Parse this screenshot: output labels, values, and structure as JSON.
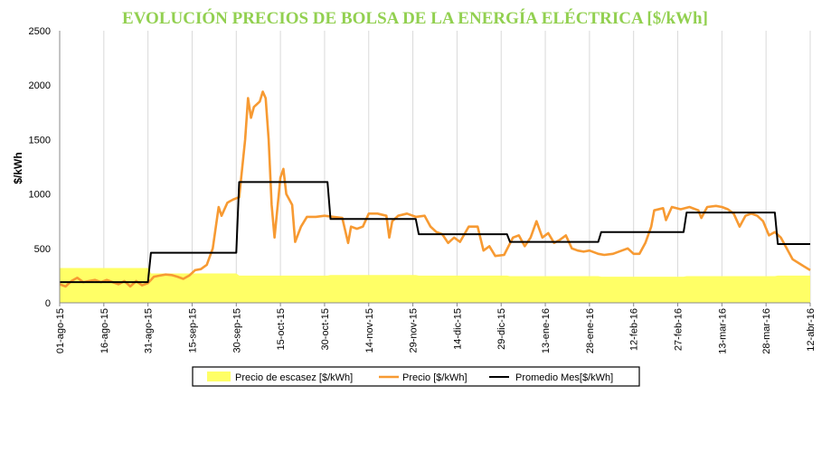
{
  "chart_data": {
    "type": "line",
    "title": "EVOLUCIÓN PRECIOS DE BOLSA DE LA ENERGÍA ELÉCTRICA [$/kWh]",
    "xlabel": "",
    "ylabel": "$/kWh",
    "ylim": [
      0,
      2500
    ],
    "yticks": [
      0,
      500,
      1000,
      1500,
      2000,
      2500
    ],
    "grid": "vertical",
    "legend_position": "bottom",
    "x_start": "2015-08-01",
    "x_end": "2016-04-12",
    "xtick_labels": [
      "01-ago-15",
      "16-ago-15",
      "31-ago-15",
      "15-sep-15",
      "30-sep-15",
      "15-oct-15",
      "30-oct-15",
      "14-nov-15",
      "29-nov-15",
      "14-dic-15",
      "29-dic-15",
      "13-ene-16",
      "28-ene-16",
      "12-feb-16",
      "27-feb-16",
      "13-mar-16",
      "28-mar-16",
      "12-abr-16"
    ],
    "xtick_dates": [
      "2015-08-01",
      "2015-08-16",
      "2015-08-31",
      "2015-09-15",
      "2015-09-30",
      "2015-10-15",
      "2015-10-30",
      "2015-11-14",
      "2015-11-29",
      "2015-12-14",
      "2015-12-29",
      "2016-01-13",
      "2016-01-28",
      "2016-02-12",
      "2016-02-27",
      "2016-03-13",
      "2016-03-28",
      "2016-04-12"
    ],
    "series": [
      {
        "name": "Precio de escasez [$/kWh]",
        "type": "area",
        "color": "#ffff66",
        "points": [
          [
            "2015-08-01",
            320
          ],
          [
            "2015-08-31",
            320
          ],
          [
            "2015-09-01",
            270
          ],
          [
            "2015-09-30",
            270
          ],
          [
            "2015-10-01",
            250
          ],
          [
            "2015-10-31",
            250
          ],
          [
            "2015-11-01",
            255
          ],
          [
            "2015-11-30",
            255
          ],
          [
            "2015-12-01",
            250
          ],
          [
            "2015-12-31",
            250
          ],
          [
            "2016-01-01",
            245
          ],
          [
            "2016-01-31",
            245
          ],
          [
            "2016-02-01",
            240
          ],
          [
            "2016-02-29",
            240
          ],
          [
            "2016-03-01",
            245
          ],
          [
            "2016-03-31",
            245
          ],
          [
            "2016-04-01",
            250
          ],
          [
            "2016-04-12",
            250
          ]
        ]
      },
      {
        "name": "Precio [$/kWh]",
        "type": "line",
        "color": "#f79a32",
        "points": [
          [
            "2015-08-01",
            170
          ],
          [
            "2015-08-03",
            150
          ],
          [
            "2015-08-05",
            200
          ],
          [
            "2015-08-07",
            230
          ],
          [
            "2015-08-09",
            190
          ],
          [
            "2015-08-11",
            200
          ],
          [
            "2015-08-13",
            210
          ],
          [
            "2015-08-15",
            190
          ],
          [
            "2015-08-17",
            210
          ],
          [
            "2015-08-19",
            190
          ],
          [
            "2015-08-21",
            170
          ],
          [
            "2015-08-23",
            200
          ],
          [
            "2015-08-25",
            150
          ],
          [
            "2015-08-27",
            200
          ],
          [
            "2015-08-29",
            160
          ],
          [
            "2015-08-31",
            180
          ],
          [
            "2015-09-02",
            240
          ],
          [
            "2015-09-04",
            250
          ],
          [
            "2015-09-06",
            260
          ],
          [
            "2015-09-08",
            255
          ],
          [
            "2015-09-10",
            240
          ],
          [
            "2015-09-12",
            220
          ],
          [
            "2015-09-14",
            250
          ],
          [
            "2015-09-16",
            300
          ],
          [
            "2015-09-18",
            310
          ],
          [
            "2015-09-20",
            350
          ],
          [
            "2015-09-22",
            500
          ],
          [
            "2015-09-24",
            880
          ],
          [
            "2015-09-25",
            800
          ],
          [
            "2015-09-27",
            920
          ],
          [
            "2015-09-29",
            950
          ],
          [
            "2015-10-01",
            970
          ],
          [
            "2015-10-03",
            1500
          ],
          [
            "2015-10-04",
            1880
          ],
          [
            "2015-10-05",
            1700
          ],
          [
            "2015-10-06",
            1800
          ],
          [
            "2015-10-08",
            1850
          ],
          [
            "2015-10-09",
            1940
          ],
          [
            "2015-10-10",
            1880
          ],
          [
            "2015-10-11",
            1500
          ],
          [
            "2015-10-12",
            900
          ],
          [
            "2015-10-13",
            600
          ],
          [
            "2015-10-15",
            1150
          ],
          [
            "2015-10-16",
            1230
          ],
          [
            "2015-10-17",
            1000
          ],
          [
            "2015-10-19",
            900
          ],
          [
            "2015-10-20",
            560
          ],
          [
            "2015-10-22",
            700
          ],
          [
            "2015-10-24",
            790
          ],
          [
            "2015-10-27",
            790
          ],
          [
            "2015-10-30",
            800
          ],
          [
            "2015-11-02",
            790
          ],
          [
            "2015-11-05",
            780
          ],
          [
            "2015-11-07",
            550
          ],
          [
            "2015-11-08",
            700
          ],
          [
            "2015-11-10",
            680
          ],
          [
            "2015-11-12",
            700
          ],
          [
            "2015-11-14",
            820
          ],
          [
            "2015-11-17",
            820
          ],
          [
            "2015-11-20",
            800
          ],
          [
            "2015-11-21",
            600
          ],
          [
            "2015-11-22",
            750
          ],
          [
            "2015-11-24",
            800
          ],
          [
            "2015-11-27",
            820
          ],
          [
            "2015-11-30",
            790
          ],
          [
            "2015-12-03",
            800
          ],
          [
            "2015-12-05",
            700
          ],
          [
            "2015-12-07",
            650
          ],
          [
            "2015-12-09",
            630
          ],
          [
            "2015-12-11",
            550
          ],
          [
            "2015-12-13",
            600
          ],
          [
            "2015-12-15",
            560
          ],
          [
            "2015-12-18",
            700
          ],
          [
            "2015-12-21",
            700
          ],
          [
            "2015-12-23",
            480
          ],
          [
            "2015-12-25",
            520
          ],
          [
            "2015-12-27",
            430
          ],
          [
            "2015-12-30",
            440
          ],
          [
            "2016-01-02",
            600
          ],
          [
            "2016-01-04",
            620
          ],
          [
            "2016-01-06",
            520
          ],
          [
            "2016-01-08",
            600
          ],
          [
            "2016-01-10",
            750
          ],
          [
            "2016-01-12",
            600
          ],
          [
            "2016-01-14",
            640
          ],
          [
            "2016-01-16",
            550
          ],
          [
            "2016-01-18",
            580
          ],
          [
            "2016-01-20",
            620
          ],
          [
            "2016-01-22",
            500
          ],
          [
            "2016-01-24",
            480
          ],
          [
            "2016-01-26",
            470
          ],
          [
            "2016-01-28",
            480
          ],
          [
            "2016-01-31",
            450
          ],
          [
            "2016-02-02",
            440
          ],
          [
            "2016-02-05",
            450
          ],
          [
            "2016-02-08",
            480
          ],
          [
            "2016-02-10",
            500
          ],
          [
            "2016-02-12",
            450
          ],
          [
            "2016-02-14",
            450
          ],
          [
            "2016-02-16",
            550
          ],
          [
            "2016-02-18",
            700
          ],
          [
            "2016-02-19",
            850
          ],
          [
            "2016-02-22",
            870
          ],
          [
            "2016-02-23",
            760
          ],
          [
            "2016-02-25",
            880
          ],
          [
            "2016-02-28",
            860
          ],
          [
            "2016-03-02",
            880
          ],
          [
            "2016-03-05",
            850
          ],
          [
            "2016-03-06",
            780
          ],
          [
            "2016-03-08",
            880
          ],
          [
            "2016-03-11",
            890
          ],
          [
            "2016-03-13",
            880
          ],
          [
            "2016-03-15",
            860
          ],
          [
            "2016-03-17",
            820
          ],
          [
            "2016-03-19",
            700
          ],
          [
            "2016-03-21",
            800
          ],
          [
            "2016-03-23",
            820
          ],
          [
            "2016-03-25",
            800
          ],
          [
            "2016-03-27",
            750
          ],
          [
            "2016-03-29",
            620
          ],
          [
            "2016-03-31",
            650
          ],
          [
            "2016-04-02",
            600
          ],
          [
            "2016-04-04",
            500
          ],
          [
            "2016-04-06",
            400
          ],
          [
            "2016-04-09",
            350
          ],
          [
            "2016-04-12",
            300
          ]
        ]
      },
      {
        "name": "Promedio Mes[$/kWh]",
        "type": "step",
        "color": "#000000",
        "points": [
          [
            "2015-08-01",
            190
          ],
          [
            "2015-08-31",
            190
          ],
          [
            "2015-09-01",
            460
          ],
          [
            "2015-09-30",
            460
          ],
          [
            "2015-10-01",
            1110
          ],
          [
            "2015-10-31",
            1110
          ],
          [
            "2015-11-01",
            770
          ],
          [
            "2015-11-30",
            770
          ],
          [
            "2015-12-01",
            630
          ],
          [
            "2015-12-31",
            630
          ],
          [
            "2016-01-01",
            560
          ],
          [
            "2016-01-31",
            560
          ],
          [
            "2016-02-01",
            650
          ],
          [
            "2016-02-29",
            650
          ],
          [
            "2016-03-01",
            830
          ],
          [
            "2016-03-31",
            830
          ],
          [
            "2016-04-01",
            540
          ],
          [
            "2016-04-12",
            540
          ]
        ]
      }
    ]
  }
}
